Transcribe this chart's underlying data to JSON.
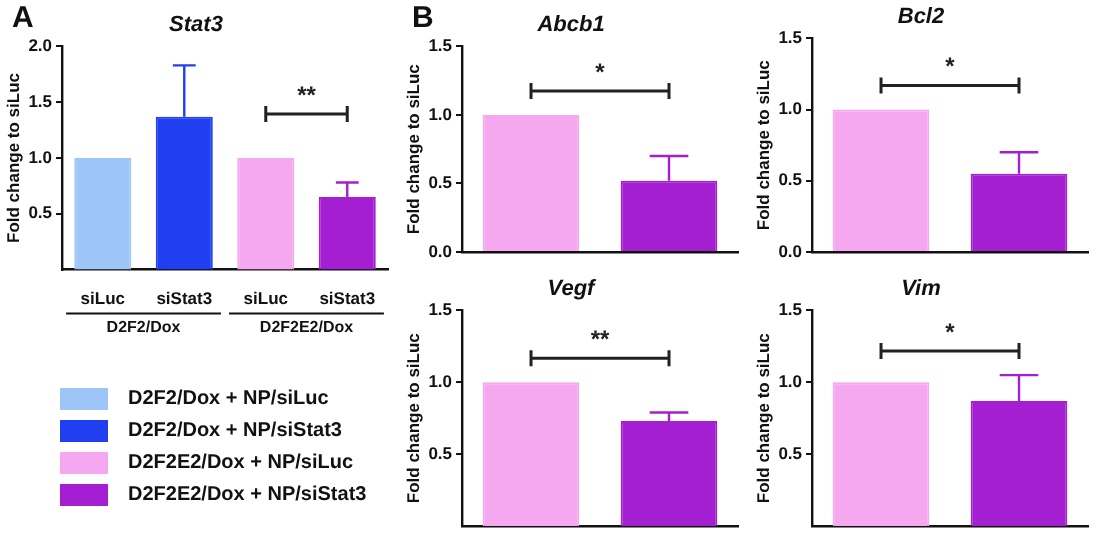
{
  "chart_data": [
    {
      "type": "bar",
      "title": "Stat3",
      "ylabel": "Fold change to siLuc",
      "categories": [
        "siLuc",
        "siStat3",
        "siLuc",
        "siStat3"
      ],
      "series": [
        {
          "name": "D2F2/Dox + NP/siLuc",
          "color": "#9ec5f7",
          "values": [
            1.0,
            null,
            null,
            null
          ],
          "errors": [
            null,
            null,
            null,
            null
          ]
        },
        {
          "name": "D2F2/Dox + NP/siStat3",
          "color": "#1f3ff0",
          "values": [
            null,
            1.37,
            null,
            null
          ],
          "errors": [
            null,
            [
              1.37,
              1.83
            ],
            null,
            null
          ]
        },
        {
          "name": "D2F2E2/Dox + NP/siLuc",
          "color": "#f5a8f0",
          "values": [
            null,
            null,
            1.0,
            null
          ],
          "errors": [
            null,
            null,
            null,
            null
          ]
        },
        {
          "name": "D2F2E2/Dox + NP/siStat3",
          "color": "#a31fd1",
          "values": [
            null,
            null,
            null,
            0.65
          ],
          "errors": [
            null,
            null,
            null,
            [
              0.65,
              0.78
            ]
          ]
        }
      ],
      "ylim": [
        0,
        2
      ],
      "yticks": [
        {
          "value": 0.5,
          "label": "0.5"
        },
        {
          "value": 1,
          "label": "1.0"
        },
        {
          "value": 1.5,
          "label": "1.5"
        },
        {
          "value": 2,
          "label": "2.0"
        }
      ],
      "grid": false,
      "legend": "bottom",
      "annotations": [
        "A",
        "**",
        "D2F2/Dox",
        "D2F2E2/Dox"
      ]
    },
    {
      "type": "bar",
      "title": "Abcb1",
      "ylabel": "Fold change to siLuc",
      "categories": [
        null,
        null
      ],
      "values": [
        1.0,
        0.52
      ],
      "errors": [
        null,
        [
          0.52,
          0.7
        ]
      ],
      "colors": [
        "#f5a8f0",
        "#a31fd1"
      ],
      "ylim": [
        0,
        1.5
      ],
      "yticks": [
        {
          "value": 0,
          "label": "0.0"
        },
        {
          "value": 0.5,
          "label": "0.5"
        },
        {
          "value": 1,
          "label": "1.0"
        },
        {
          "value": 1.5,
          "label": "1.5"
        }
      ],
      "grid": false,
      "tick_labels": "y",
      "annotations": [
        "B",
        "*"
      ]
    },
    {
      "type": "bar",
      "title": "Bcl2",
      "ylabel": "Fold change to siLuc",
      "categories": [
        null,
        null
      ],
      "values": [
        1.0,
        0.55
      ],
      "errors": [
        null,
        [
          0.55,
          0.7
        ]
      ],
      "colors": [
        "#f5a8f0",
        "#a31fd1"
      ],
      "ylim": [
        0,
        1.5
      ],
      "yticks": [
        {
          "value": 0,
          "label": "0.0"
        },
        {
          "value": 0.5,
          "label": "0.5"
        },
        {
          "value": 1,
          "label": "1.0"
        },
        {
          "value": 1.5,
          "label": "1.5"
        }
      ],
      "grid": false,
      "tick_labels": "y",
      "annotations": [
        "*"
      ]
    },
    {
      "type": "bar",
      "title": "Vegf",
      "ylabel": "Fold change to siLuc",
      "categories": [
        null,
        null
      ],
      "values": [
        1.0,
        0.73
      ],
      "errors": [
        null,
        [
          0.73,
          0.79
        ]
      ],
      "colors": [
        "#f5a8f0",
        "#a31fd1"
      ],
      "ylim": [
        0,
        1.5
      ],
      "yticks": [
        {
          "value": 0.5,
          "label": "0.5"
        },
        {
          "value": 1,
          "label": "1.0"
        },
        {
          "value": 1.5,
          "label": "1.5"
        }
      ],
      "grid": false,
      "tick_labels": "y",
      "annotations": [
        "**"
      ]
    },
    {
      "type": "bar",
      "title": "Vim",
      "ylabel": "Fold change to siLuc",
      "categories": [
        null,
        null
      ],
      "values": [
        1.0,
        0.87
      ],
      "errors": [
        null,
        [
          0.87,
          1.05
        ]
      ],
      "colors": [
        "#f5a8f0",
        "#a31fd1"
      ],
      "ylim": [
        0,
        1.5
      ],
      "yticks": [
        {
          "value": 0.5,
          "label": "0.5"
        },
        {
          "value": 1,
          "label": "1.0"
        },
        {
          "value": 1.5,
          "label": "1.5"
        }
      ],
      "grid": false,
      "tick_labels": "y",
      "annotations": [
        "*"
      ]
    }
  ]
}
